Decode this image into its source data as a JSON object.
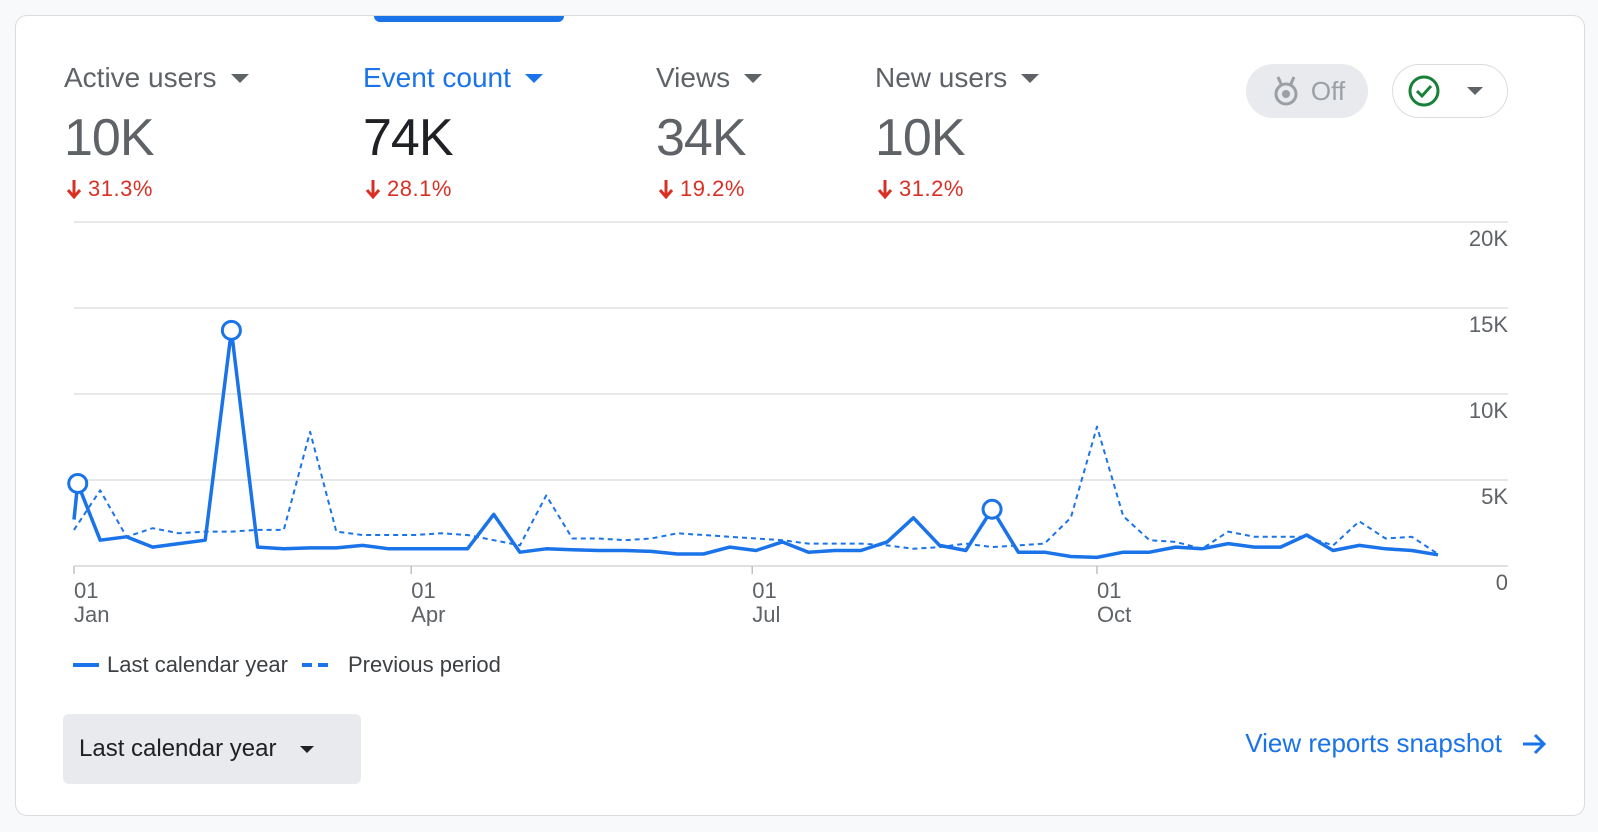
{
  "metrics": [
    {
      "label": "Active users",
      "value": "10K",
      "delta": "31.3%",
      "selected": false
    },
    {
      "label": "Event count",
      "value": "74K",
      "delta": "28.1%",
      "selected": true
    },
    {
      "label": "Views",
      "value": "34K",
      "delta": "19.2%",
      "selected": false
    },
    {
      "label": "New users",
      "value": "10K",
      "delta": "31.2%",
      "selected": false
    }
  ],
  "toggles": {
    "insights_label": "Off",
    "insights_icon": "award-icon",
    "status_icon": "check-circle-icon"
  },
  "colors": {
    "accent": "#1a73e8",
    "negative": "#d93025",
    "status_ok": "#188038"
  },
  "chart_data": {
    "type": "line",
    "x_tick_labels": [
      {
        "day": "01",
        "month": "Jan"
      },
      {
        "day": "01",
        "month": "Apr"
      },
      {
        "day": "01",
        "month": "Jul"
      },
      {
        "day": "01",
        "month": "Oct"
      }
    ],
    "y_tick_labels": [
      "20K",
      "15K",
      "10K",
      "5K",
      "0"
    ],
    "ylim": [
      0,
      20000
    ],
    "grid": true,
    "series": [
      {
        "name": "Last calendar year",
        "style": "solid",
        "points": [
          [
            "2023-01-01",
            2700
          ],
          [
            "2023-01-02",
            4800
          ],
          [
            "2023-01-08",
            1500
          ],
          [
            "2023-01-15",
            1700
          ],
          [
            "2023-01-22",
            1100
          ],
          [
            "2023-01-29",
            1300
          ],
          [
            "2023-02-05",
            1500
          ],
          [
            "2023-02-12",
            13700
          ],
          [
            "2023-02-19",
            1100
          ],
          [
            "2023-02-26",
            1000
          ],
          [
            "2023-03-05",
            1050
          ],
          [
            "2023-03-12",
            1050
          ],
          [
            "2023-03-19",
            1200
          ],
          [
            "2023-03-26",
            1000
          ],
          [
            "2023-04-02",
            1000
          ],
          [
            "2023-04-09",
            1000
          ],
          [
            "2023-04-16",
            1000
          ],
          [
            "2023-04-23",
            3000
          ],
          [
            "2023-04-30",
            800
          ],
          [
            "2023-05-07",
            1000
          ],
          [
            "2023-05-14",
            950
          ],
          [
            "2023-05-21",
            900
          ],
          [
            "2023-05-28",
            900
          ],
          [
            "2023-06-04",
            850
          ],
          [
            "2023-06-11",
            700
          ],
          [
            "2023-06-18",
            700
          ],
          [
            "2023-06-25",
            1100
          ],
          [
            "2023-07-02",
            900
          ],
          [
            "2023-07-09",
            1400
          ],
          [
            "2023-07-16",
            800
          ],
          [
            "2023-07-23",
            900
          ],
          [
            "2023-07-30",
            900
          ],
          [
            "2023-08-06",
            1400
          ],
          [
            "2023-08-13",
            2800
          ],
          [
            "2023-08-20",
            1200
          ],
          [
            "2023-08-27",
            900
          ],
          [
            "2023-09-03",
            3300
          ],
          [
            "2023-09-10",
            800
          ],
          [
            "2023-09-17",
            800
          ],
          [
            "2023-09-24",
            550
          ],
          [
            "2023-10-01",
            500
          ],
          [
            "2023-10-08",
            800
          ],
          [
            "2023-10-15",
            800
          ],
          [
            "2023-10-22",
            1100
          ],
          [
            "2023-10-29",
            1000
          ],
          [
            "2023-11-05",
            1300
          ],
          [
            "2023-11-12",
            1100
          ],
          [
            "2023-11-19",
            1100
          ],
          [
            "2023-11-26",
            1800
          ],
          [
            "2023-12-03",
            900
          ],
          [
            "2023-12-10",
            1200
          ],
          [
            "2023-12-17",
            1000
          ],
          [
            "2023-12-24",
            900
          ],
          [
            "2023-12-31",
            650
          ]
        ],
        "markers": [
          "2023-01-02",
          "2023-02-12",
          "2023-09-03"
        ]
      },
      {
        "name": "Previous period",
        "style": "dashed",
        "points": [
          [
            "2023-01-01",
            2100
          ],
          [
            "2023-01-08",
            4400
          ],
          [
            "2023-01-15",
            1700
          ],
          [
            "2023-01-22",
            2200
          ],
          [
            "2023-01-29",
            1900
          ],
          [
            "2023-02-05",
            2000
          ],
          [
            "2023-02-12",
            2000
          ],
          [
            "2023-02-19",
            2100
          ],
          [
            "2023-02-26",
            2100
          ],
          [
            "2023-03-05",
            7800
          ],
          [
            "2023-03-12",
            2000
          ],
          [
            "2023-03-19",
            1800
          ],
          [
            "2023-03-26",
            1800
          ],
          [
            "2023-04-02",
            1800
          ],
          [
            "2023-04-09",
            1900
          ],
          [
            "2023-04-16",
            1800
          ],
          [
            "2023-04-23",
            1500
          ],
          [
            "2023-04-30",
            1200
          ],
          [
            "2023-05-07",
            4100
          ],
          [
            "2023-05-14",
            1600
          ],
          [
            "2023-05-21",
            1600
          ],
          [
            "2023-05-28",
            1500
          ],
          [
            "2023-06-04",
            1600
          ],
          [
            "2023-06-11",
            1900
          ],
          [
            "2023-06-18",
            1800
          ],
          [
            "2023-06-25",
            1700
          ],
          [
            "2023-07-02",
            1600
          ],
          [
            "2023-07-09",
            1500
          ],
          [
            "2023-07-16",
            1300
          ],
          [
            "2023-07-23",
            1300
          ],
          [
            "2023-07-30",
            1300
          ],
          [
            "2023-08-06",
            1200
          ],
          [
            "2023-08-13",
            1000
          ],
          [
            "2023-08-20",
            1100
          ],
          [
            "2023-08-27",
            1300
          ],
          [
            "2023-09-03",
            1100
          ],
          [
            "2023-09-10",
            1200
          ],
          [
            "2023-09-17",
            1300
          ],
          [
            "2023-09-24",
            2800
          ],
          [
            "2023-10-01",
            8100
          ],
          [
            "2023-10-08",
            2900
          ],
          [
            "2023-10-15",
            1500
          ],
          [
            "2023-10-22",
            1400
          ],
          [
            "2023-10-29",
            1000
          ],
          [
            "2023-11-05",
            2000
          ],
          [
            "2023-11-12",
            1700
          ],
          [
            "2023-11-19",
            1700
          ],
          [
            "2023-11-26",
            1700
          ],
          [
            "2023-12-03",
            1200
          ],
          [
            "2023-12-10",
            2600
          ],
          [
            "2023-12-17",
            1600
          ],
          [
            "2023-12-24",
            1700
          ],
          [
            "2023-12-31",
            700
          ]
        ]
      }
    ]
  },
  "date_range": {
    "label": "Last calendar year"
  },
  "snapshot_link": {
    "label": "View reports snapshot"
  }
}
